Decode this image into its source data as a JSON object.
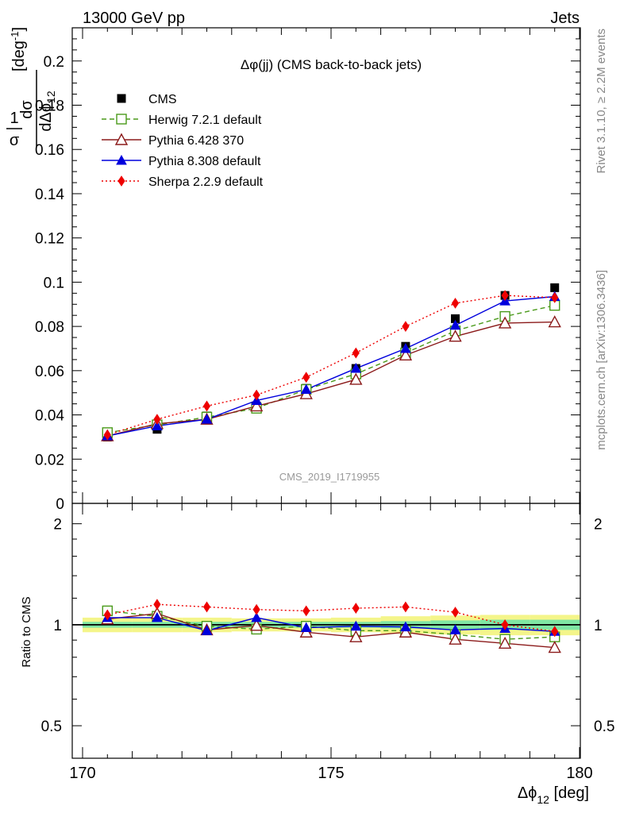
{
  "header": {
    "left": "13000 GeV pp",
    "right": "Jets"
  },
  "side": {
    "rivet": "Rivet 3.1.10, ≥ 2.2M events",
    "mcplots": "mcplots.cern.ch [arXiv:1306.3436]"
  },
  "chart_data": {
    "type": "line",
    "title": "Δφ(jj) (CMS back-to-back jets)",
    "analysis_label": "CMS_2019_I1719955",
    "ylabel_top": "1/σ dσ/dΔφ₁₂ [deg⁻¹]",
    "ylabel_ratio": "Ratio to CMS",
    "xlabel": "Δφ₁₂ [deg]",
    "xlim": [
      170,
      180
    ],
    "ylim": [
      0,
      0.215
    ],
    "ratio_ylim": [
      0.4,
      2.3
    ],
    "ratio_log_scale": true,
    "x_ticks": [
      170,
      175,
      180
    ],
    "x_tick_labels": [
      "170",
      "175",
      "180"
    ],
    "y_ticks": [
      0,
      0.02,
      0.04,
      0.06,
      0.08,
      0.1,
      0.12,
      0.14,
      0.16,
      0.18,
      0.2
    ],
    "y_tick_labels": [
      "0",
      "0.02",
      "0.04",
      "0.06",
      "0.08",
      "0.1",
      "0.12",
      "0.14",
      "0.16",
      "0.18",
      "0.2"
    ],
    "ratio_ticks": [
      0.5,
      1,
      2
    ],
    "ratio_tick_labels": [
      "0.5",
      "1",
      "2"
    ],
    "legend_position": "top-left",
    "x": [
      170.5,
      171.5,
      172.5,
      173.5,
      174.5,
      175.5,
      176.5,
      177.5,
      178.5,
      179.5
    ],
    "data": {
      "name": "CMS",
      "values": [
        0.03,
        0.0335,
        0.0395,
        0.044,
        0.052,
        0.061,
        0.071,
        0.0835,
        0.094,
        0.0975
      ],
      "color": "#000000"
    },
    "series": [
      {
        "name": "Herwig 7.2.1 default",
        "values": [
          0.032,
          0.0355,
          0.039,
          0.043,
          0.0515,
          0.0585,
          0.068,
          0.078,
          0.0845,
          0.0895
        ],
        "ratio": [
          1.1,
          1.06,
          0.99,
          0.97,
          0.99,
          0.96,
          0.96,
          0.935,
          0.905,
          0.92
        ],
        "color": "#4a9a1a",
        "marker": "open-square",
        "dash": "dashed"
      },
      {
        "name": "Pythia 6.428 370",
        "values": [
          0.0305,
          0.036,
          0.038,
          0.044,
          0.0495,
          0.056,
          0.067,
          0.0755,
          0.0815,
          0.082
        ],
        "ratio": [
          1.04,
          1.08,
          0.965,
          0.995,
          0.95,
          0.92,
          0.95,
          0.905,
          0.88,
          0.855
        ],
        "color": "#8b1a1a",
        "marker": "open-triangle",
        "dash": "solid"
      },
      {
        "name": "Pythia 8.308 default",
        "values": [
          0.0305,
          0.035,
          0.038,
          0.0465,
          0.0515,
          0.061,
          0.07,
          0.0805,
          0.0915,
          0.0935
        ],
        "ratio": [
          1.05,
          1.05,
          0.96,
          1.05,
          0.98,
          0.99,
          0.985,
          0.965,
          0.975,
          0.955
        ],
        "color": "#0000dd",
        "marker": "filled-triangle",
        "dash": "solid"
      },
      {
        "name": "Sherpa 2.2.9 default",
        "values": [
          0.031,
          0.038,
          0.044,
          0.049,
          0.057,
          0.068,
          0.08,
          0.0905,
          0.094,
          0.093
        ],
        "ratio": [
          1.07,
          1.15,
          1.13,
          1.11,
          1.1,
          1.12,
          1.13,
          1.09,
          1.0,
          0.955
        ],
        "color": "#ee0000",
        "marker": "filled-diamond",
        "dash": "dotted"
      }
    ],
    "uncertainty_band": {
      "inner_half_width": [
        0.02,
        0.02,
        0.02,
        0.02,
        0.02,
        0.02,
        0.025,
        0.03,
        0.035,
        0.035
      ],
      "outer_half_width": [
        0.05,
        0.05,
        0.05,
        0.045,
        0.045,
        0.05,
        0.06,
        0.065,
        0.07,
        0.07
      ],
      "inner_color": "#7fe6a4",
      "outer_color": "#f4f58a"
    }
  }
}
